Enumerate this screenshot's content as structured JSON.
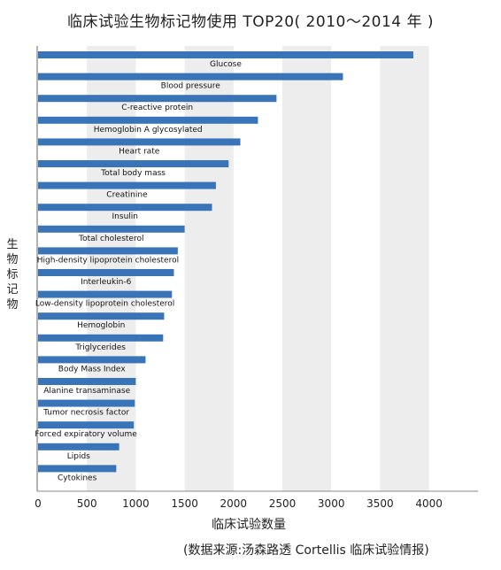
{
  "title": "临床试验生物标记物使用 TOP20( 2010～2014 年 )",
  "source_note": "(数据来源:汤森路透 Cortellis 临床试验情报)",
  "chart_data": {
    "type": "bar",
    "orientation": "horizontal",
    "title": "临床试验生物标记物使用 TOP20( 2010～2014 年 )",
    "xlabel": "临床试验数量",
    "ylabel": "生物标记物",
    "xlim": [
      0,
      4250
    ],
    "xticks": [
      0,
      500,
      1000,
      1500,
      2000,
      2500,
      3000,
      3500,
      4000
    ],
    "grid": "alternating vertical bands",
    "bar_color": "#3a74b8",
    "categories": [
      "Glucose",
      "Blood pressure",
      "C-reactive protein",
      "Hemoglobin A glycosylated",
      "Heart rate",
      "Total body mass",
      "Creatinine",
      "Insulin",
      "Total cholesterol",
      "High-density lipoprotein cholesterol",
      "Interleukin-6",
      "Low-density lipoprotein cholesterol",
      "Hemoglobin",
      "Triglycerides",
      "Body Mass Index",
      "Alanine transaminase",
      "Tumor necrosis factor",
      "Forced expiratory volume",
      "Lipids",
      "Cytokines"
    ],
    "values": [
      3840,
      3120,
      2440,
      2250,
      2070,
      1950,
      1820,
      1780,
      1500,
      1430,
      1390,
      1370,
      1290,
      1280,
      1100,
      1000,
      990,
      980,
      830,
      800
    ]
  }
}
